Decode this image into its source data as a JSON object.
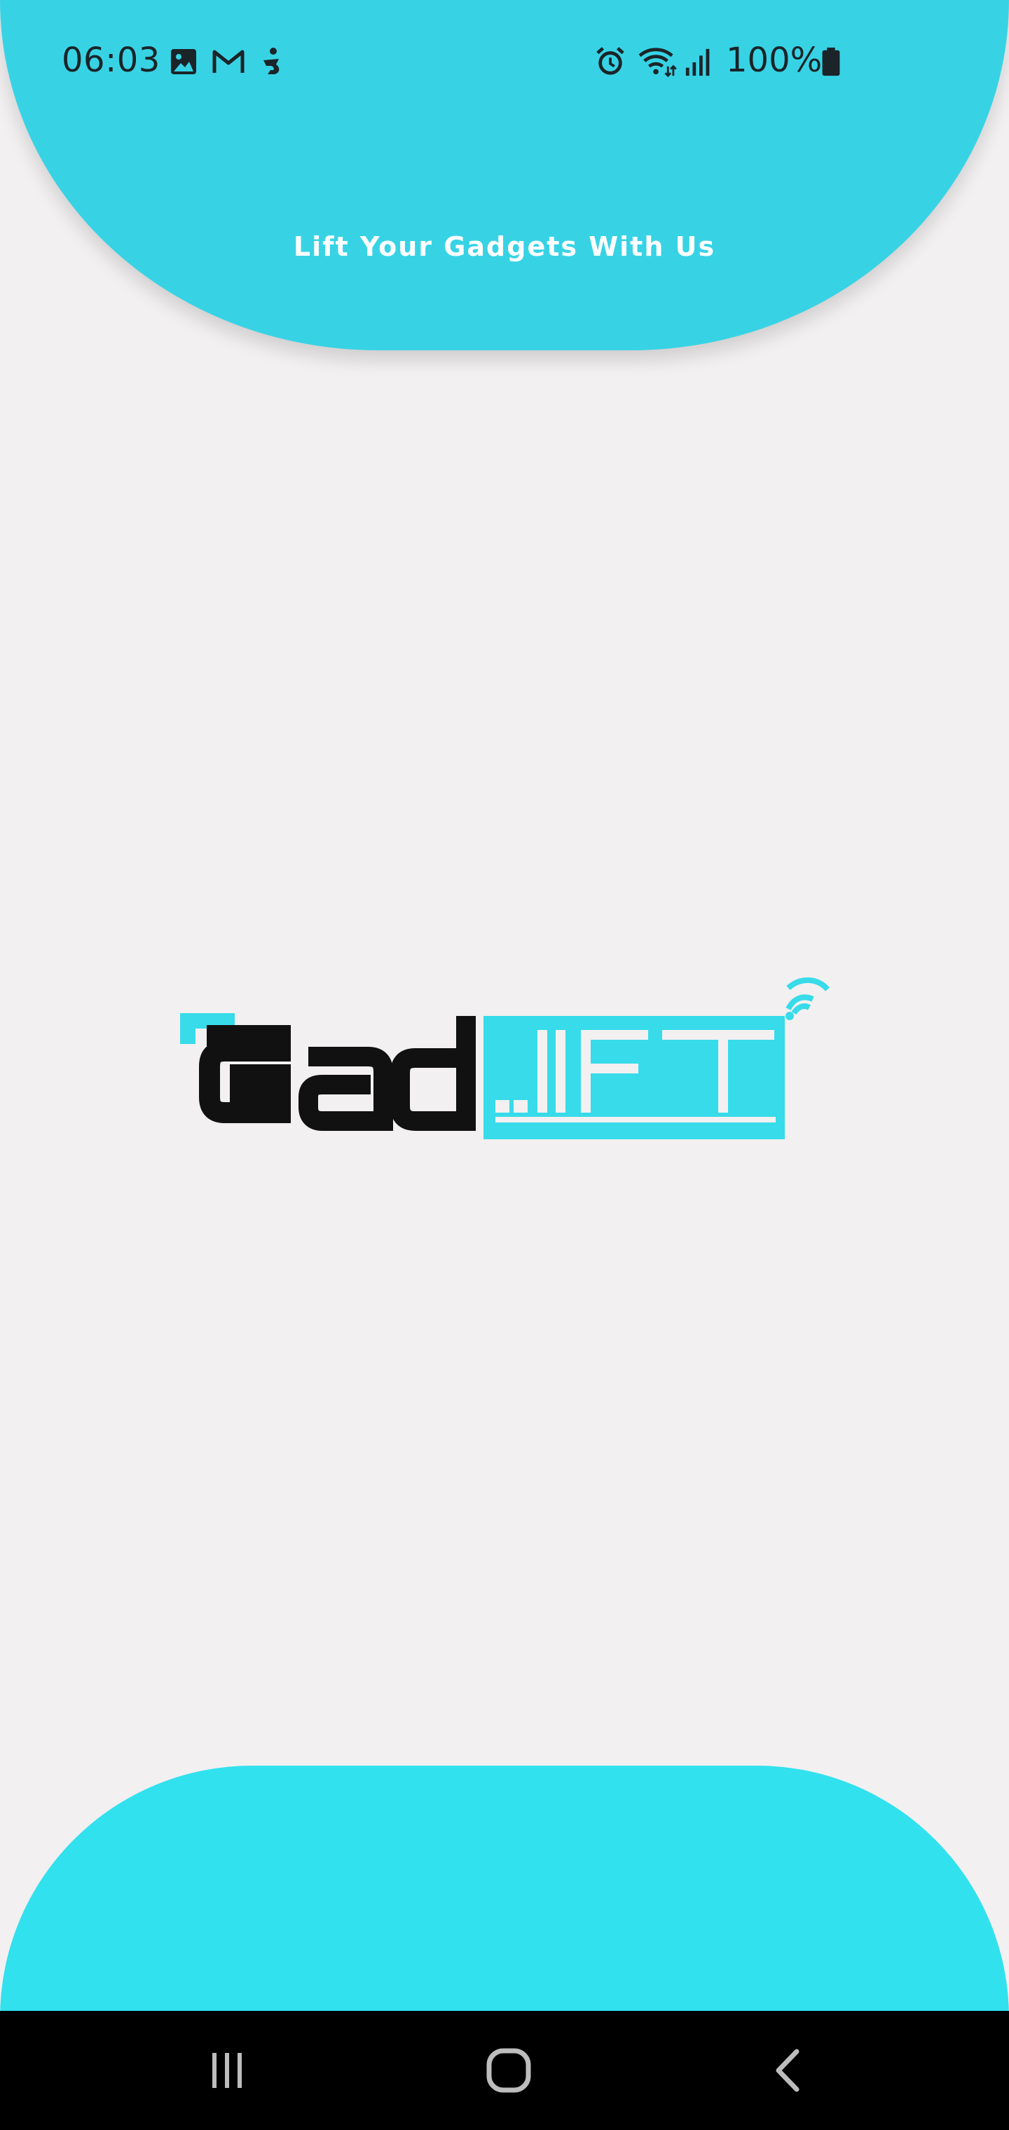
{
  "status_bar": {
    "time": "06:03",
    "battery_percent": "100%",
    "left_icons": [
      "gallery-icon",
      "gmail-icon",
      "accessibility-icon"
    ],
    "right_icons": [
      "alarm-icon",
      "wifi-icon",
      "signal-icon",
      "battery-icon"
    ]
  },
  "header": {
    "tagline": "Lift Your Gadgets With Us",
    "color": "#37d3e5"
  },
  "logo": {
    "text_dark": "Gad",
    "text_accent": "LIFT",
    "accent_color": "#37dbe9",
    "dark_color": "#111111"
  },
  "bottom_blob": {
    "color": "#31e1ee"
  },
  "nav_bar": {
    "buttons": [
      "recent-apps",
      "home",
      "back"
    ]
  }
}
